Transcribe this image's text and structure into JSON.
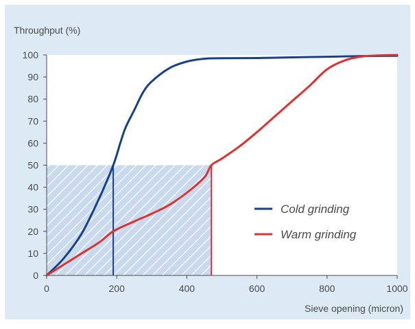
{
  "chart_data": {
    "type": "line",
    "ylabel": "Throughput (%)",
    "xlabel": "Sieve opening (micron)",
    "xlim": [
      0,
      1000
    ],
    "ylim": [
      0,
      100
    ],
    "x_ticks": [
      0,
      200,
      400,
      600,
      800,
      1000
    ],
    "y_ticks": [
      0,
      10,
      20,
      30,
      40,
      50,
      60,
      70,
      80,
      90,
      100
    ],
    "grid": false,
    "legend_position": "lower-right",
    "series": [
      {
        "name": "Cold grinding",
        "color": "#163f8c",
        "points": [
          [
            0,
            0
          ],
          [
            50,
            8
          ],
          [
            100,
            19
          ],
          [
            150,
            35
          ],
          [
            190,
            50
          ],
          [
            210,
            60
          ],
          [
            225,
            67
          ],
          [
            250,
            75
          ],
          [
            275,
            83
          ],
          [
            300,
            88
          ],
          [
            350,
            94
          ],
          [
            400,
            97
          ],
          [
            450,
            98.3
          ],
          [
            500,
            98.5
          ],
          [
            600,
            98.6
          ],
          [
            700,
            98.9
          ],
          [
            800,
            99.2
          ],
          [
            900,
            99.5
          ],
          [
            1000,
            99.6
          ]
        ]
      },
      {
        "name": "Warm grinding",
        "color": "#e03030",
        "points": [
          [
            0,
            0
          ],
          [
            50,
            5
          ],
          [
            100,
            10
          ],
          [
            150,
            15
          ],
          [
            190,
            20
          ],
          [
            250,
            24.5
          ],
          [
            300,
            28
          ],
          [
            350,
            32
          ],
          [
            400,
            37.5
          ],
          [
            450,
            44.5
          ],
          [
            470,
            50
          ],
          [
            500,
            53
          ],
          [
            550,
            58.5
          ],
          [
            600,
            65
          ],
          [
            650,
            72
          ],
          [
            700,
            79
          ],
          [
            750,
            86
          ],
          [
            800,
            93.5
          ],
          [
            850,
            97.5
          ],
          [
            900,
            99.3
          ],
          [
            950,
            99.8
          ],
          [
            1000,
            100
          ]
        ]
      }
    ],
    "annotations": [
      {
        "type": "hatched-region",
        "x": [
          0,
          470
        ],
        "y": [
          0,
          50
        ]
      },
      {
        "type": "drop-line",
        "series": "Cold grinding",
        "x": 190,
        "y": 50
      },
      {
        "type": "drop-line",
        "series": "Warm grinding",
        "x": 470,
        "y": 50
      }
    ]
  }
}
